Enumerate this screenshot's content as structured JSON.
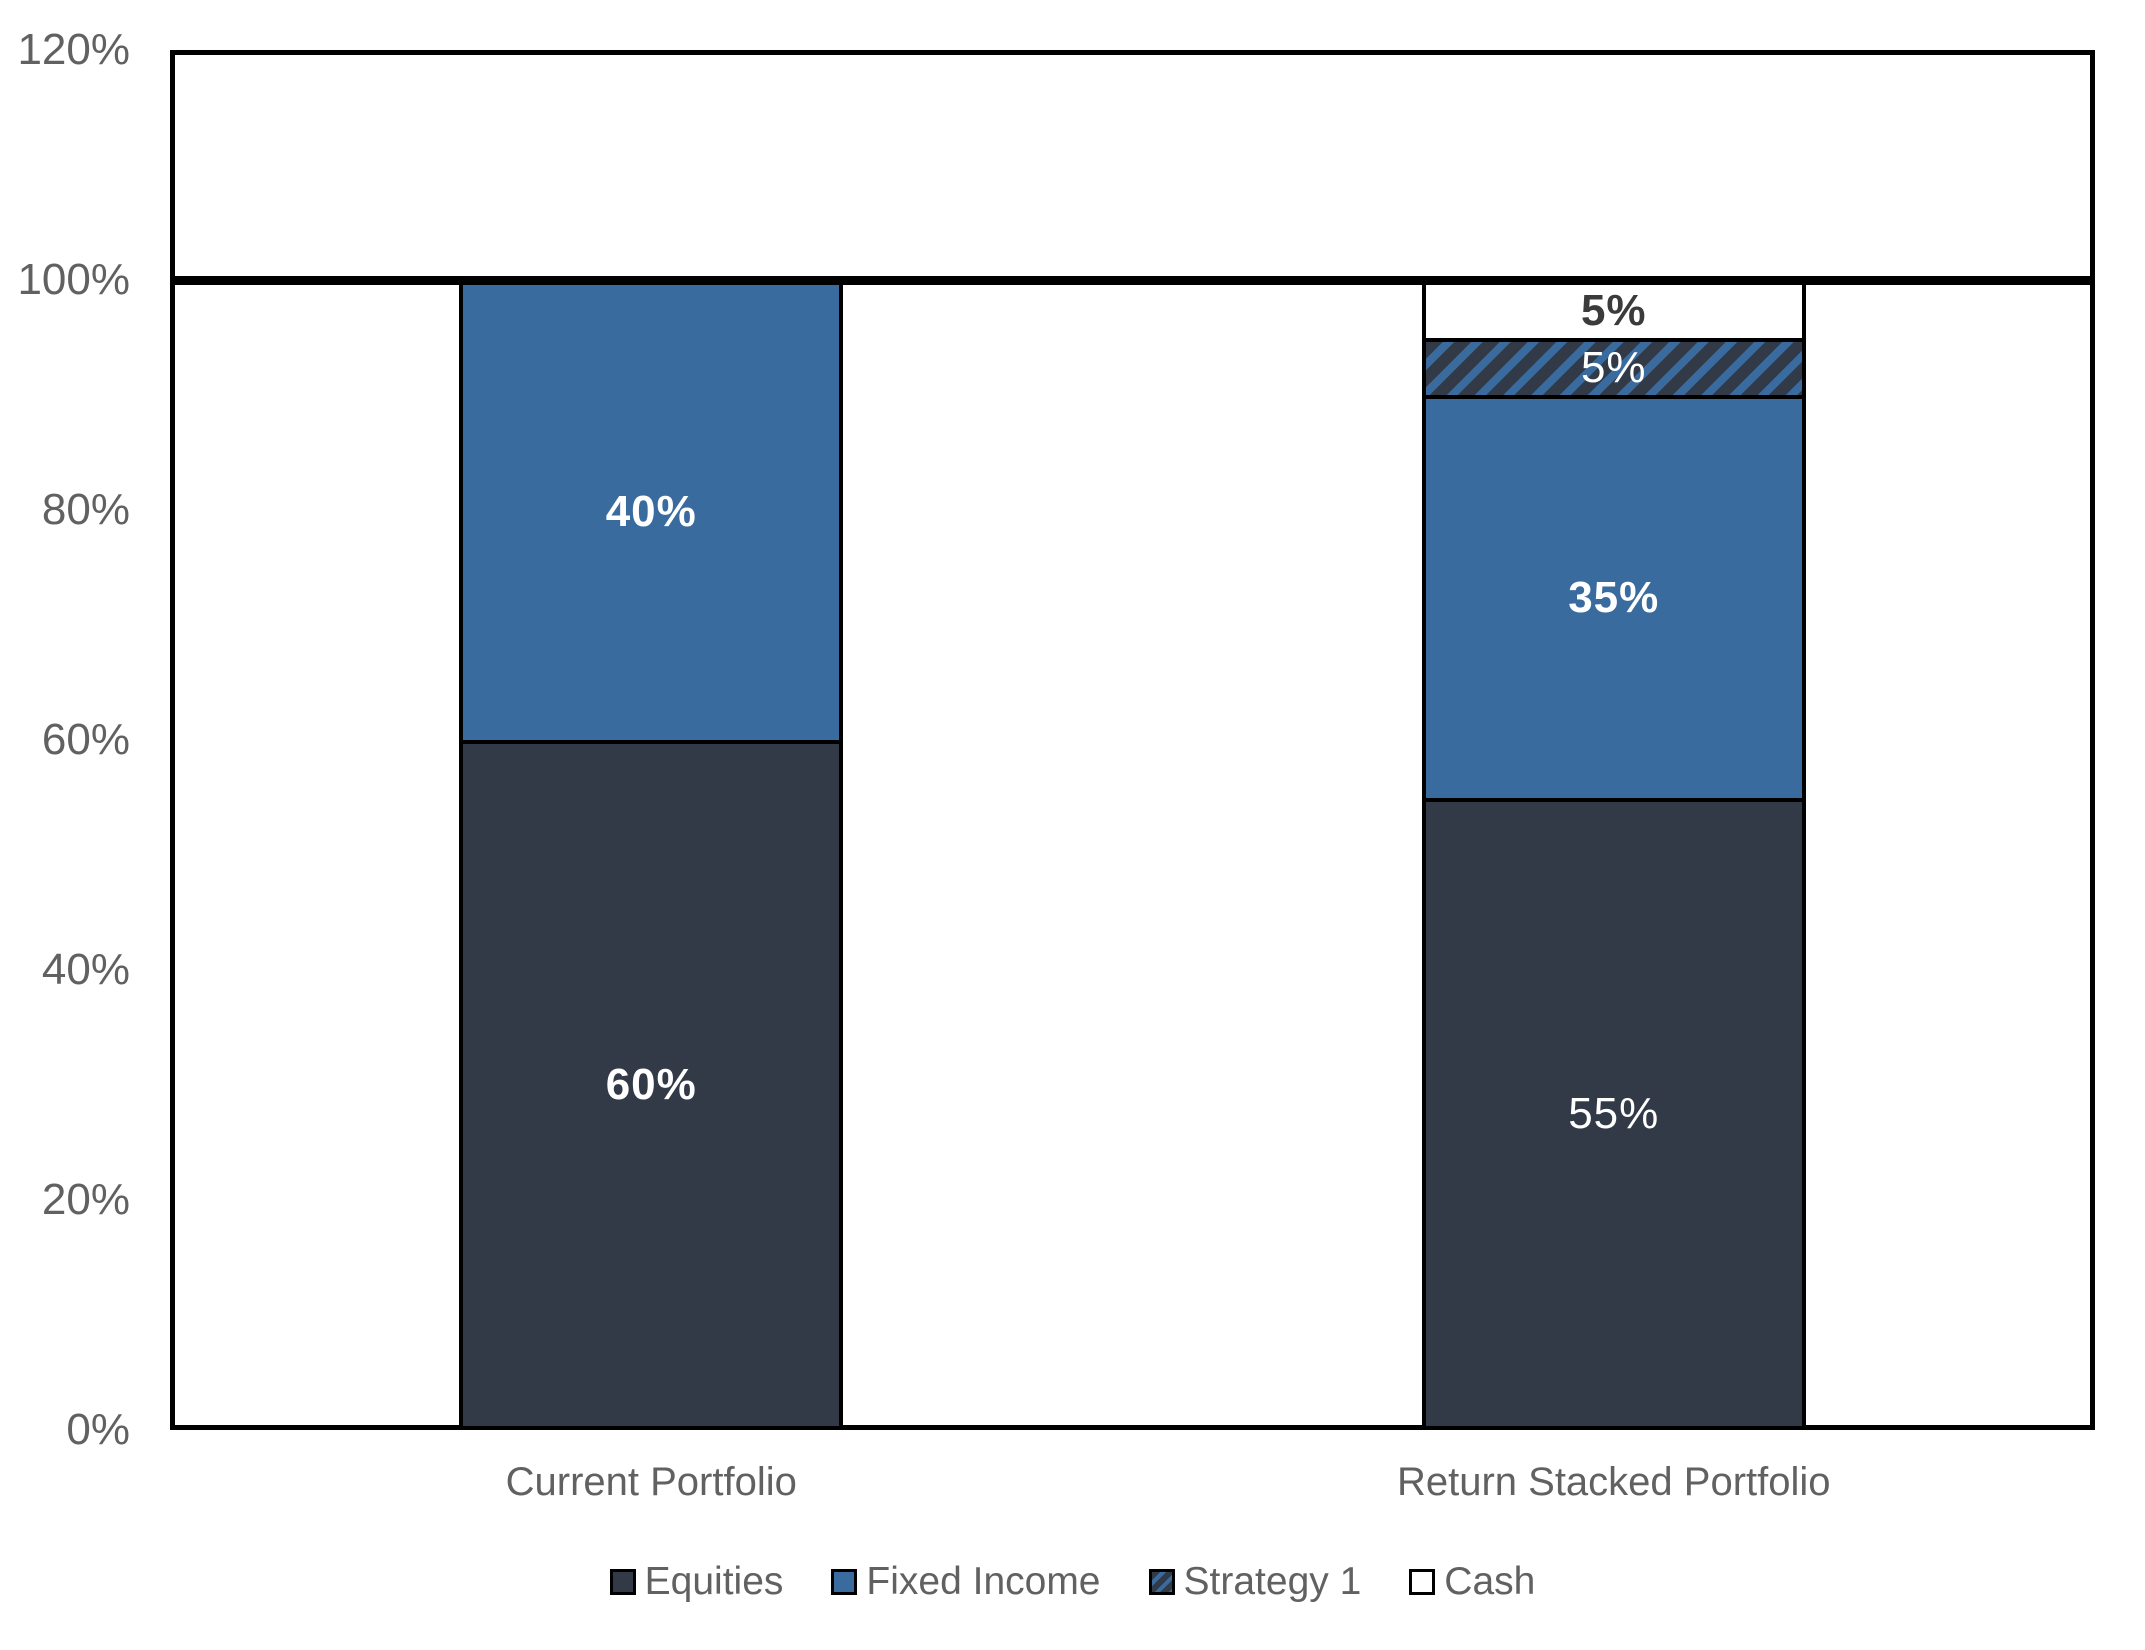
{
  "chart_data": {
    "type": "bar",
    "stacked": true,
    "title": "",
    "categories": [
      "Current Portfolio",
      "Return Stacked Portfolio"
    ],
    "series": [
      {
        "name": "Equities",
        "values": [
          60,
          55
        ],
        "data_labels": [
          "60%",
          "55%"
        ],
        "label_weights": [
          "bold",
          "normal"
        ],
        "label_color": "#FFFFFF",
        "color": "#333A47",
        "pattern": "solid"
      },
      {
        "name": "Fixed Income",
        "values": [
          40,
          35
        ],
        "data_labels": [
          "40%",
          "35%"
        ],
        "label_weights": [
          "bold",
          "bold"
        ],
        "label_color": "#FFFFFF",
        "color": "#3A6B9F",
        "pattern": "solid"
      },
      {
        "name": "Strategy 1",
        "values": [
          0,
          5
        ],
        "data_labels": [
          "",
          "5%"
        ],
        "label_weights": [
          "normal",
          "normal"
        ],
        "label_color": "#FFFFFF",
        "color": "#333A47",
        "pattern": "diagonal-stripe",
        "stripe_color": "#3A6B9F"
      },
      {
        "name": "Cash",
        "values": [
          0,
          5
        ],
        "data_labels": [
          "",
          "5%"
        ],
        "label_weights": [
          "bold",
          "bold"
        ],
        "label_color": "#3B3B3B",
        "color": "#FFFFFF",
        "pattern": "solid"
      }
    ],
    "y_axis": {
      "min": 0,
      "max": 120,
      "step": 20,
      "tick_labels": [
        "0%",
        "20%",
        "40%",
        "60%",
        "80%",
        "100%",
        "120%"
      ]
    },
    "reference_line": {
      "value": 100,
      "color": "#000000"
    },
    "legend": {
      "position": "bottom",
      "entries": [
        "Equities",
        "Fixed Income",
        "Strategy 1",
        "Cash"
      ]
    },
    "grid": false,
    "axis_text_color": "#616161",
    "plot_border_color": "#000000"
  }
}
